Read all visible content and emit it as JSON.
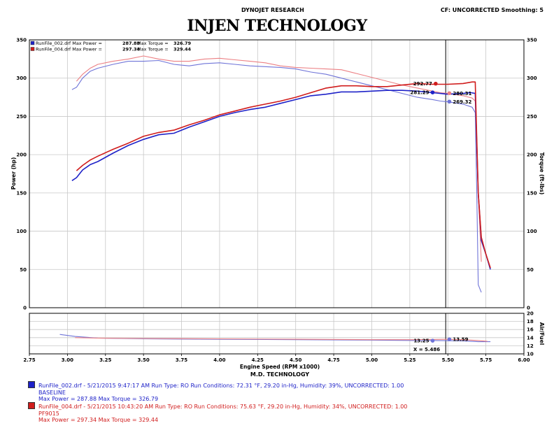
{
  "header": {
    "left_center": "DYNOJET RESEARCH",
    "right": "CF: UNCORRECTED  Smoothing: 5",
    "title": "INJEN TECHNOLOGY"
  },
  "colors": {
    "run1": "#1e22c8",
    "run2": "#d01c1c",
    "run1_torque": "#6f74d8",
    "run2_torque": "#ec7f83",
    "grid": "#c8c8c8"
  },
  "chart_data": [
    {
      "type": "line",
      "panel": "main",
      "xlabel": "Engine Speed (RPM x1000)",
      "ylabel_left": "Power (hp)",
      "ylabel_right": "Torque (ft-lbs)",
      "xlim": [
        2.75,
        6.0
      ],
      "ylim": [
        0,
        350
      ],
      "x_ticks": [
        "2.75",
        "3.00",
        "3.25",
        "3.50",
        "3.75",
        "4.00",
        "4.25",
        "4.50",
        "4.75",
        "5.00",
        "5.25",
        "5.50",
        "5.75",
        "6.00"
      ],
      "y_ticks": [
        "0",
        "50",
        "100",
        "150",
        "200",
        "250",
        "300",
        "350"
      ],
      "grid": true,
      "cursor_x": 5.486,
      "legend": [
        {
          "file": "RunFile_002.drf",
          "label": "Max Power",
          "power": "287.88",
          "torque_label": "Max Torque",
          "torque": "326.79"
        },
        {
          "file": "RunFile_004.drf",
          "label": "Max Power",
          "power": "297.34",
          "torque_label": "Max Torque",
          "torque": "329.44"
        }
      ],
      "series": [
        {
          "name": "RunFile_002.drf Power",
          "style": "power_blue",
          "x": [
            3.03,
            3.06,
            3.1,
            3.15,
            3.2,
            3.3,
            3.4,
            3.5,
            3.6,
            3.7,
            3.8,
            3.9,
            4.0,
            4.1,
            4.2,
            4.3,
            4.4,
            4.5,
            4.6,
            4.7,
            4.8,
            4.9,
            5.0,
            5.1,
            5.2,
            5.3,
            5.4,
            5.45,
            5.5,
            5.6,
            5.65,
            5.68,
            5.7,
            5.72,
            5.75,
            5.78
          ],
          "y": [
            166,
            170,
            180,
            187,
            191,
            202,
            212,
            220,
            226,
            228,
            236,
            243,
            250,
            255,
            259,
            262,
            267,
            272,
            277,
            279,
            282,
            282,
            283,
            284,
            284,
            283,
            281,
            280,
            279,
            280,
            281,
            280,
            150,
            88,
            70,
            50
          ]
        },
        {
          "name": "RunFile_004.drf Power",
          "style": "power_red",
          "x": [
            3.06,
            3.1,
            3.15,
            3.2,
            3.3,
            3.4,
            3.5,
            3.6,
            3.7,
            3.8,
            3.9,
            4.0,
            4.1,
            4.2,
            4.3,
            4.4,
            4.5,
            4.6,
            4.7,
            4.8,
            4.9,
            5.0,
            5.1,
            5.2,
            5.3,
            5.4,
            5.45,
            5.5,
            5.6,
            5.66,
            5.68,
            5.7,
            5.72,
            5.75,
            5.78
          ],
          "y": [
            179,
            186,
            193,
            198,
            207,
            215,
            224,
            229,
            232,
            239,
            245,
            252,
            257,
            262,
            266,
            270,
            275,
            281,
            287,
            290,
            290,
            289,
            289,
            291,
            293,
            292,
            292,
            292,
            293,
            295,
            295,
            150,
            92,
            70,
            52
          ]
        },
        {
          "name": "RunFile_002.drf Torque",
          "style": "torque_blue",
          "x": [
            3.03,
            3.06,
            3.1,
            3.15,
            3.2,
            3.3,
            3.4,
            3.5,
            3.6,
            3.7,
            3.8,
            3.9,
            4.0,
            4.1,
            4.2,
            4.3,
            4.4,
            4.5,
            4.6,
            4.7,
            4.8,
            4.9,
            5.0,
            5.1,
            5.2,
            5.3,
            5.4,
            5.45,
            5.5,
            5.6,
            5.66,
            5.68,
            5.69,
            5.7,
            5.72
          ],
          "y": [
            285,
            288,
            300,
            309,
            313,
            318,
            322,
            322,
            323,
            318,
            316,
            319,
            320,
            318,
            316,
            315,
            314,
            312,
            308,
            305,
            300,
            295,
            290,
            285,
            280,
            275,
            272,
            270,
            269,
            266,
            262,
            255,
            150,
            30,
            20
          ]
        },
        {
          "name": "RunFile_004.drf Torque",
          "style": "torque_red",
          "x": [
            3.06,
            3.1,
            3.15,
            3.2,
            3.3,
            3.4,
            3.5,
            3.6,
            3.7,
            3.8,
            3.9,
            4.0,
            4.1,
            4.2,
            4.3,
            4.4,
            4.5,
            4.6,
            4.7,
            4.8,
            4.9,
            5.0,
            5.1,
            5.2,
            5.3,
            5.4,
            5.45,
            5.5,
            5.6,
            5.66,
            5.68,
            5.7,
            5.72
          ],
          "y": [
            296,
            305,
            313,
            318,
            322,
            325,
            329,
            325,
            322,
            322,
            325,
            326,
            324,
            322,
            320,
            316,
            314,
            313,
            312,
            311,
            306,
            301,
            296,
            291,
            287,
            283,
            281,
            280,
            277,
            274,
            270,
            150,
            60
          ]
        }
      ],
      "annotations": [
        {
          "text": "292.77",
          "x": 5.42,
          "y": 292.77,
          "color": "#d01c1c",
          "side": "left"
        },
        {
          "text": "281.29",
          "x": 5.4,
          "y": 281.29,
          "color": "#1e22c8",
          "side": "left"
        },
        {
          "text": "280.31",
          "x": 5.51,
          "y": 280.31,
          "color": "#ec7f83",
          "side": "right"
        },
        {
          "text": "269.32",
          "x": 5.51,
          "y": 269.32,
          "color": "#6f74d8",
          "side": "right"
        }
      ]
    },
    {
      "type": "line",
      "panel": "air_fuel",
      "ylabel_right": "Air/Fuel",
      "xlim": [
        2.75,
        6.0
      ],
      "ylim": [
        10,
        20
      ],
      "y_ticks": [
        "10",
        "12",
        "14",
        "16",
        "18",
        "20"
      ],
      "x_ticks": [
        "2.75",
        "3.00",
        "3.25",
        "3.50",
        "3.75",
        "4.00",
        "4.25",
        "4.50",
        "4.75",
        "5.00",
        "5.25",
        "5.50",
        "5.75",
        "6.00"
      ],
      "cursor_label": "X = 5.486",
      "series": [
        {
          "name": "RunFile_002.drf Air/Fuel",
          "style": "af_blue",
          "x": [
            2.95,
            3.05,
            3.2,
            3.5,
            4.0,
            4.5,
            5.0,
            5.3,
            5.4,
            5.48,
            5.6,
            5.7,
            5.78
          ],
          "y": [
            14.8,
            14.3,
            13.9,
            13.7,
            13.6,
            13.5,
            13.4,
            13.3,
            13.3,
            13.25,
            13.2,
            13.0,
            13.0
          ]
        },
        {
          "name": "RunFile_004.drf Air/Fuel",
          "style": "af_red",
          "x": [
            3.05,
            3.2,
            3.5,
            4.0,
            4.5,
            5.0,
            5.3,
            5.48,
            5.6,
            5.7,
            5.76
          ],
          "y": [
            14.0,
            13.9,
            13.8,
            13.7,
            13.6,
            13.5,
            13.5,
            13.59,
            13.5,
            13.3,
            13.1
          ]
        }
      ],
      "annotations": [
        {
          "text": "13.25",
          "x": 5.4,
          "y": 13.25,
          "color": "#000000",
          "side": "left"
        },
        {
          "text": "13.59",
          "x": 5.51,
          "y": 13.59,
          "color": "#000000",
          "side": "right"
        }
      ]
    }
  ],
  "footer_title": "M.D. TECHNOLOGY",
  "runs": [
    {
      "line1": "RunFile_002.drf - 5/21/2015 9:47:17 AM  Run Type: RO  Run Conditions: 72.31 °F, 29.20 in-Hg,  Humidity:  39%, UNCORRECTED: 1.00",
      "line2": "BASELINE",
      "line3": "Max Power = 287.88  Max Torque = 326.79"
    },
    {
      "line1": "RunFile_004.drf - 5/21/2015 10:43:20 AM  Run Type: RO  Run Conditions: 75.63 °F, 29.20 in-Hg,  Humidity:  34%, UNCORRECTED: 1.00",
      "line2": "PF9015",
      "line3": "Max Power = 297.34  Max Torque = 329.44"
    }
  ]
}
